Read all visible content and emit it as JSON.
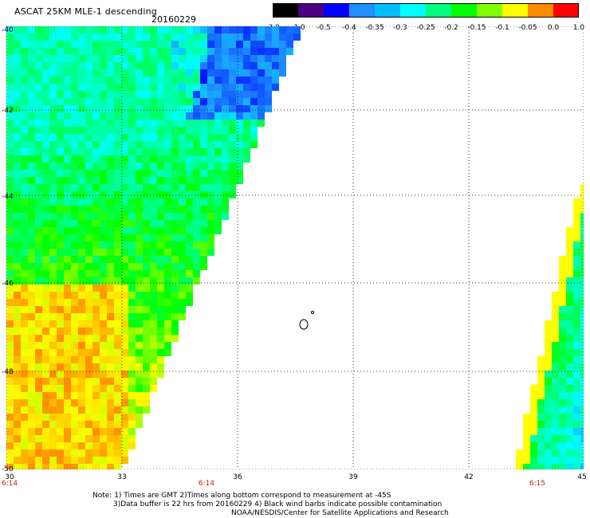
{
  "header": {
    "title": "ASCAT 25KM MLE-1 descending",
    "date": "20160229"
  },
  "colorbar": {
    "labels": [
      "-3.0",
      "-1.0",
      "-0.5",
      "-0.4",
      "-0.35",
      "-0.3",
      "-0.25",
      "-0.2",
      "-0.15",
      "-0.1",
      "-0.05",
      "0.0",
      "1.0"
    ],
    "colors": [
      "#000000",
      "#4b0082",
      "#0000ff",
      "#1e90ff",
      "#00bfff",
      "#00ffff",
      "#00ff80",
      "#00ff00",
      "#7fff00",
      "#ffff00",
      "#ff8c00",
      "#ff0000"
    ]
  },
  "axes": {
    "lat_labels": [
      "-40",
      "-42",
      "-44",
      "-46",
      "-48",
      "-50"
    ],
    "lon_labels": [
      "30",
      "33",
      "36",
      "39",
      "42",
      "45"
    ],
    "time_labels": [
      "6:14",
      "6:14",
      "6:15"
    ]
  },
  "notes": {
    "line1": "Note: 1) Times are GMT 2)Times along bottom correspond to measurement at -45S",
    "line2": "3)Data buffer is 22 hrs from 20160229 4) Black wind barbs indicate possible contamination",
    "line3": "NOAA/NESDIS/Center for Satellite Applications and Research"
  }
}
